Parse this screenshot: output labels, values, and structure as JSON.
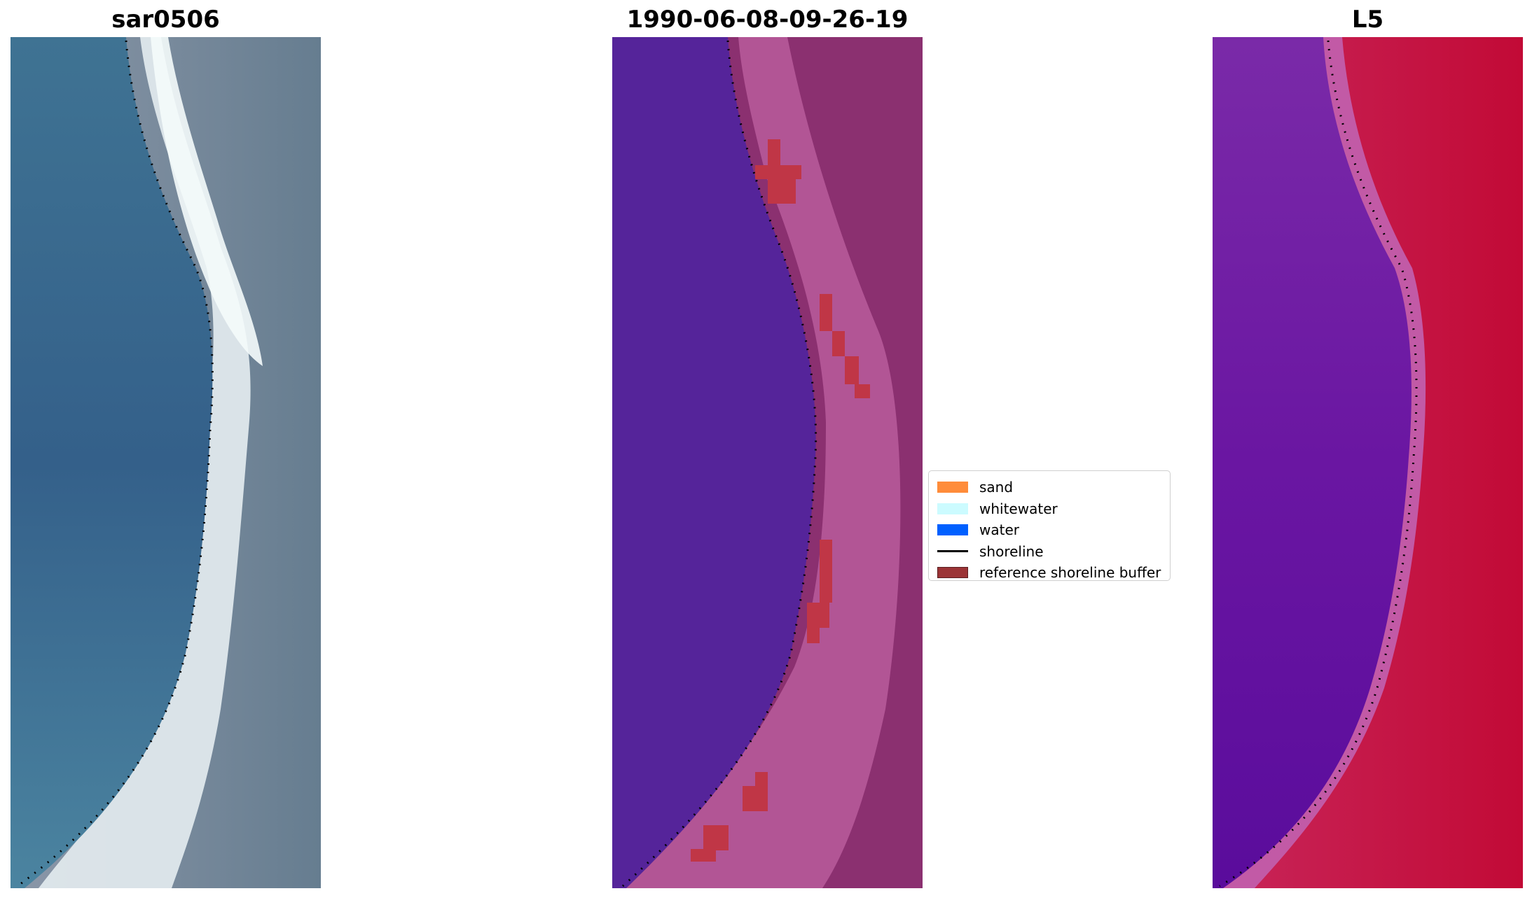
{
  "panels": [
    {
      "title": "sar0506",
      "colors": {
        "water": "#3b6b92",
        "land": "#6f8799",
        "surf": "#e9f3f4"
      }
    },
    {
      "title": "1990-06-08-09-26-19",
      "colors": {
        "water": "#55249a",
        "land": "#8b3070",
        "surf": "#bb5b9c",
        "buffer": "#c03646"
      }
    },
    {
      "title": "L5",
      "colors": {
        "water": "#6a12a0",
        "land": "#c2103a",
        "surf": "#c25aa6"
      }
    }
  ],
  "legend": {
    "items": [
      {
        "label": "sand",
        "color": "#ff8c3a",
        "kind": "patch"
      },
      {
        "label": "whitewater",
        "color": "#ccfbff",
        "kind": "patch"
      },
      {
        "label": "water",
        "color": "#0060ff",
        "kind": "patch"
      },
      {
        "label": "shoreline",
        "color": "#000000",
        "kind": "line"
      },
      {
        "label": "reference shoreline buffer",
        "color": "#9b3436",
        "kind": "patch"
      }
    ]
  }
}
